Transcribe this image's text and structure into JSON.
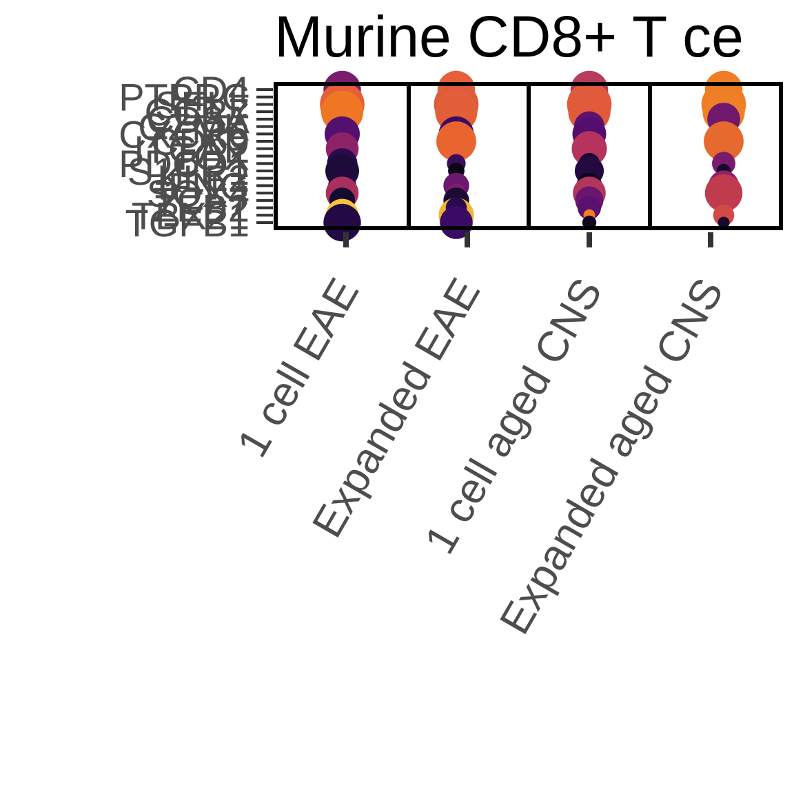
{
  "chart_data": {
    "type": "scatter",
    "title": "Murine CD8+ T ce",
    "xlabel": "",
    "ylabel": "",
    "categories": [
      "1 cell EAE",
      "Expanded EAE",
      "1 cell aged CNS",
      "Expanded aged CNS"
    ],
    "genes": [
      "CD4",
      "PTPRC",
      "SELL",
      "CCR7",
      "CD8A",
      "GZMK",
      "CXCR6",
      "CD69",
      "ITGAE",
      "TOX",
      "PDCD1",
      "S1PR1",
      "KLF2",
      "IFNG",
      "SOX4",
      "TCF7",
      "ZEB2",
      "TBX21",
      "TGFB1"
    ],
    "grid": false,
    "legend": "none",
    "points": [
      {
        "x": "1 cell EAE",
        "y": "CD4",
        "size": 0.8,
        "color": "#7a1c6d"
      },
      {
        "x": "1 cell EAE",
        "y": "SELL",
        "size": 0.95,
        "color": "#e5603a"
      },
      {
        "x": "1 cell EAE",
        "y": "CCR7",
        "size": 0.9,
        "color": "#f07624"
      },
      {
        "x": "1 cell EAE",
        "y": "GZMK",
        "size": 0.3,
        "color": "#6b186e"
      },
      {
        "x": "1 cell EAE",
        "y": "CXCR6",
        "size": 0.75,
        "color": "#54106e"
      },
      {
        "x": "1 cell EAE",
        "y": "ITGAE",
        "size": 0.7,
        "color": "#8c2369"
      },
      {
        "x": "1 cell EAE",
        "y": "PDCD1",
        "size": 0.65,
        "color": "#2c0a4e"
      },
      {
        "x": "1 cell EAE",
        "y": "S1PR1",
        "size": 0.72,
        "color": "#1d0c3a"
      },
      {
        "x": "1 cell EAE",
        "y": "IFNG",
        "size": 0.6,
        "color": "#24083f"
      },
      {
        "x": "1 cell EAE",
        "y": "SOX4",
        "size": 0.7,
        "color": "#a8305e"
      },
      {
        "x": "1 cell EAE",
        "y": "TCF7",
        "size": 0.55,
        "color": "#140b30"
      },
      {
        "x": "1 cell EAE",
        "y": "ZEB2",
        "size": 0.35,
        "color": "#3b0a64"
      },
      {
        "x": "1 cell EAE",
        "y": "TBX21",
        "size": 0.7,
        "color": "#f7c43a"
      },
      {
        "x": "1 cell EAE",
        "y": "TGFB1",
        "size": 0.8,
        "color": "#240a45"
      },
      {
        "x": "Expanded EAE",
        "y": "CD4",
        "size": 0.8,
        "color": "#e5603a"
      },
      {
        "x": "Expanded EAE",
        "y": "SELL",
        "size": 0.95,
        "color": "#e05a3c"
      },
      {
        "x": "Expanded EAE",
        "y": "CCR7",
        "size": 0.9,
        "color": "#e35f39"
      },
      {
        "x": "Expanded EAE",
        "y": "CXCR6",
        "size": 0.75,
        "color": "#3d0a63"
      },
      {
        "x": "Expanded EAE",
        "y": "CD69",
        "size": 0.85,
        "color": "#e8652f"
      },
      {
        "x": "Expanded EAE",
        "y": "PDCD1",
        "size": 0.4,
        "color": "#3a0c5a"
      },
      {
        "x": "Expanded EAE",
        "y": "S1PR1",
        "size": 0.35,
        "color": "#0d0518"
      },
      {
        "x": "Expanded EAE",
        "y": "IFNG",
        "size": 0.55,
        "color": "#6b186e"
      },
      {
        "x": "Expanded EAE",
        "y": "SOX4",
        "size": 0.4,
        "color": "#7f1f6c"
      },
      {
        "x": "Expanded EAE",
        "y": "TCF7",
        "size": 0.55,
        "color": "#1b0a34"
      },
      {
        "x": "Expanded EAE",
        "y": "TBX21",
        "size": 0.75,
        "color": "#f5b336"
      },
      {
        "x": "Expanded EAE",
        "y": "ZEB2",
        "size": 0.45,
        "color": "#2a0a4f"
      },
      {
        "x": "Expanded EAE",
        "y": "TGFB1",
        "size": 0.7,
        "color": "#3b0a64"
      },
      {
        "x": "1 cell aged CNS",
        "y": "CD4",
        "size": 0.8,
        "color": "#b63b5c"
      },
      {
        "x": "1 cell aged CNS",
        "y": "SELL",
        "size": 0.95,
        "color": "#e05a3c"
      },
      {
        "x": "1 cell aged CNS",
        "y": "CCR7",
        "size": 0.9,
        "color": "#e15b3a"
      },
      {
        "x": "1 cell aged CNS",
        "y": "GZMK",
        "size": 0.65,
        "color": "#5d126e"
      },
      {
        "x": "1 cell aged CNS",
        "y": "CXCR6",
        "size": 0.72,
        "color": "#540f6e"
      },
      {
        "x": "1 cell aged CNS",
        "y": "ITGAE",
        "size": 0.75,
        "color": "#b5345e"
      },
      {
        "x": "1 cell aged CNS",
        "y": "PDCD1",
        "size": 0.45,
        "color": "#1a0a33"
      },
      {
        "x": "1 cell aged CNS",
        "y": "S1PR1",
        "size": 0.62,
        "color": "#22093e"
      },
      {
        "x": "1 cell aged CNS",
        "y": "IFNG",
        "size": 0.55,
        "color": "#0e0620"
      },
      {
        "x": "1 cell aged CNS",
        "y": "SOX4",
        "size": 0.7,
        "color": "#b2365c"
      },
      {
        "x": "1 cell aged CNS",
        "y": "TCF7",
        "size": 0.6,
        "color": "#6a1570"
      },
      {
        "x": "1 cell aged CNS",
        "y": "ZEB2",
        "size": 0.5,
        "color": "#5a116e"
      },
      {
        "x": "1 cell aged CNS",
        "y": "TBX21",
        "size": 0.25,
        "color": "#f27c2a"
      },
      {
        "x": "1 cell aged CNS",
        "y": "TGFB1",
        "size": 0.3,
        "color": "#120720"
      },
      {
        "x": "Expanded aged CNS",
        "y": "CD4",
        "size": 0.8,
        "color": "#f07c24"
      },
      {
        "x": "Expanded aged CNS",
        "y": "SELL",
        "size": 0.95,
        "color": "#f07c24"
      },
      {
        "x": "Expanded aged CNS",
        "y": "CCR7",
        "size": 0.9,
        "color": "#f08028"
      },
      {
        "x": "Expanded aged CNS",
        "y": "CD8A",
        "size": 0.7,
        "color": "#6f186e"
      },
      {
        "x": "Expanded aged CNS",
        "y": "CD69",
        "size": 0.85,
        "color": "#e66a2e"
      },
      {
        "x": "Expanded aged CNS",
        "y": "PDCD1",
        "size": 0.5,
        "color": "#7a1c6d"
      },
      {
        "x": "Expanded aged CNS",
        "y": "S1PR1",
        "size": 0.3,
        "color": "#16092c"
      },
      {
        "x": "Expanded aged CNS",
        "y": "IFNG",
        "size": 0.65,
        "color": "#8c2369"
      },
      {
        "x": "Expanded aged CNS",
        "y": "SOX4",
        "size": 0.8,
        "color": "#c13b4f"
      },
      {
        "x": "Expanded aged CNS",
        "y": "TBX21",
        "size": 0.45,
        "color": "#d24a45"
      },
      {
        "x": "Expanded aged CNS",
        "y": "TGFB1",
        "size": 0.25,
        "color": "#1a0a2e"
      }
    ]
  }
}
